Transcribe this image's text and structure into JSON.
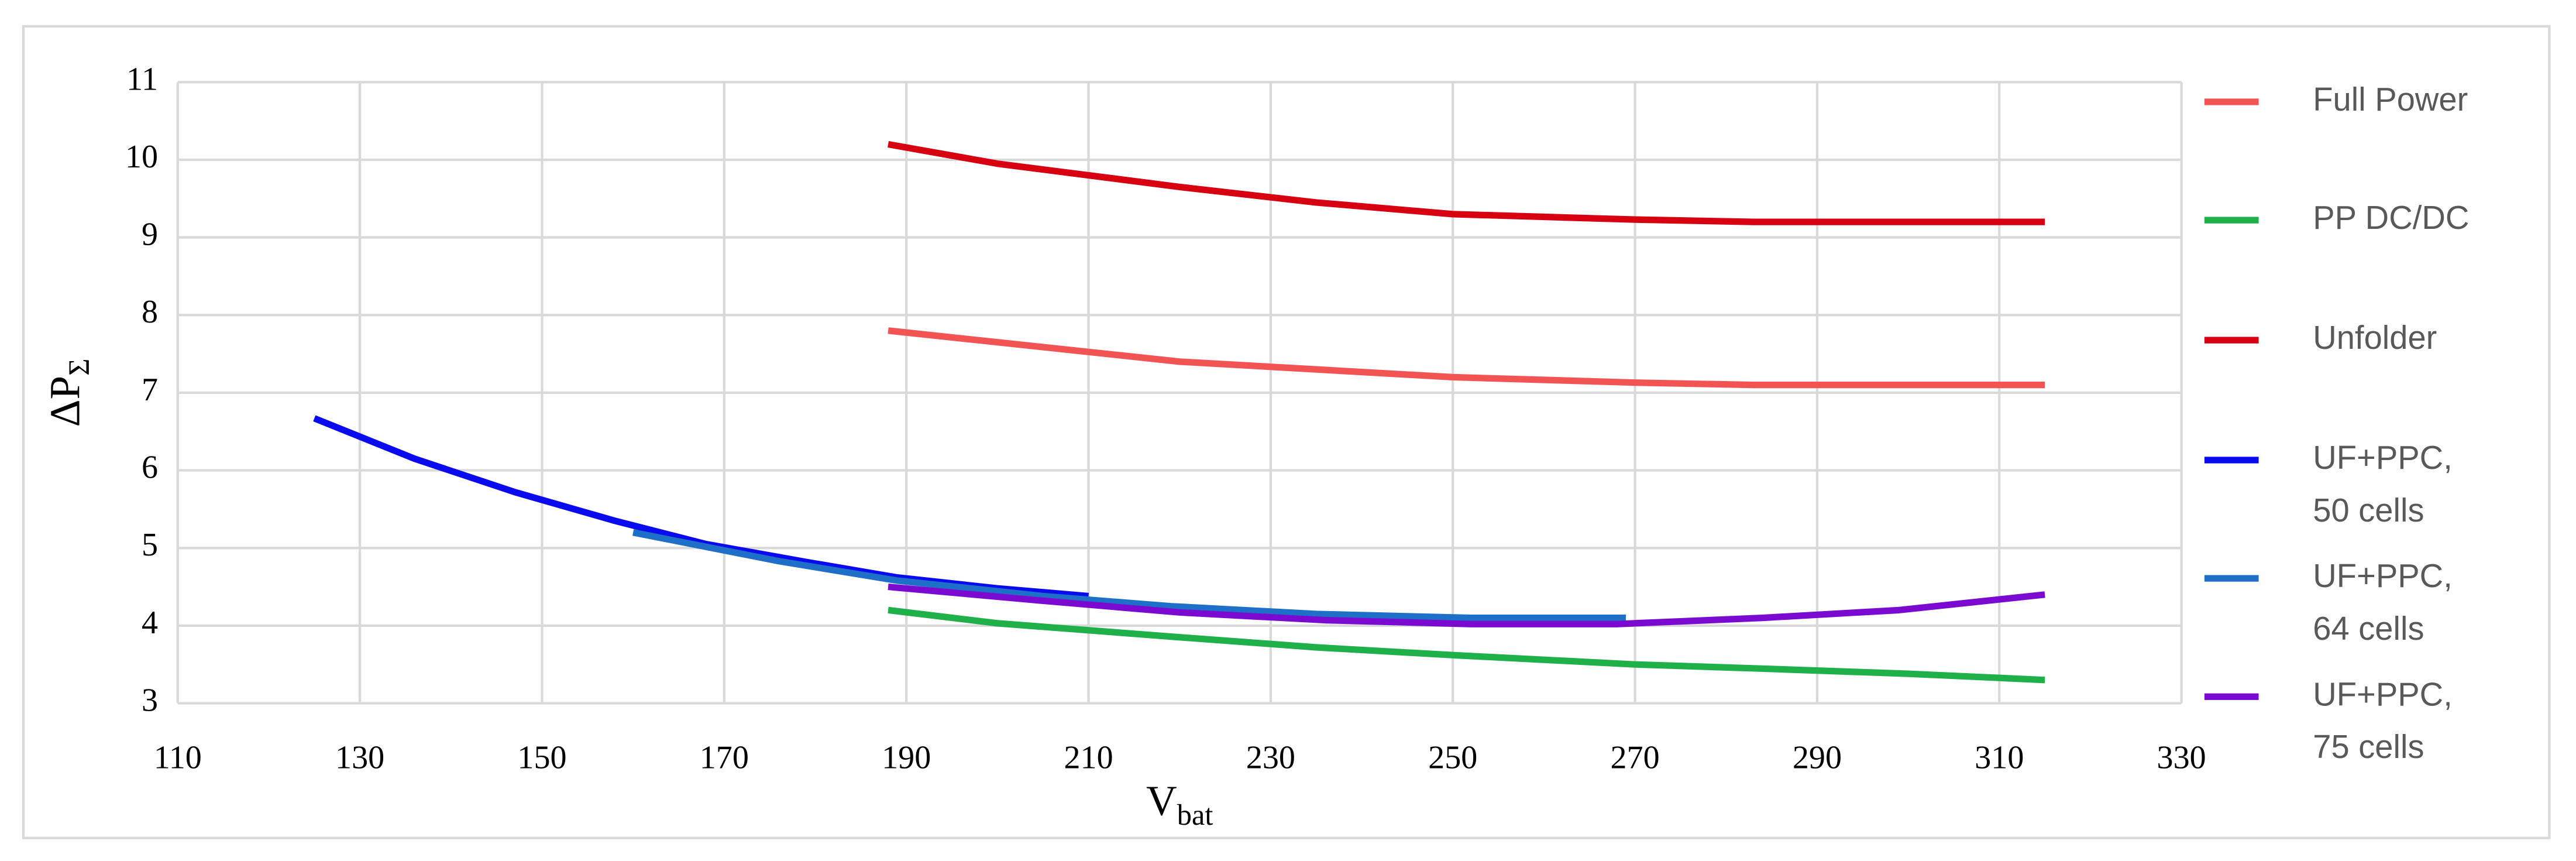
{
  "chart_data": {
    "type": "line",
    "ylabel": "ΔP",
    "ylabel_sub": "Σ",
    "xlabel": "V",
    "xlabel_sub": "bat",
    "xlim": [
      110,
      330
    ],
    "xticks": [
      110,
      130,
      150,
      170,
      190,
      210,
      230,
      250,
      270,
      290,
      310,
      330
    ],
    "ylim": [
      3,
      11
    ],
    "yticks": [
      3,
      4,
      5,
      6,
      7,
      8,
      9,
      10,
      11
    ],
    "grid": true,
    "legend": "right",
    "series": [
      {
        "name": "Full Power",
        "color": "#f25454",
        "x": [
          188,
          200,
          220,
          235,
          250,
          270,
          283,
          300,
          315
        ],
        "values": [
          7.8,
          7.65,
          7.4,
          7.3,
          7.2,
          7.13,
          7.1,
          7.1,
          7.1
        ]
      },
      {
        "name": "PP DC/DC",
        "color": "#1fb04a",
        "x": [
          188,
          200,
          220,
          235,
          250,
          270,
          283,
          300,
          315
        ],
        "values": [
          4.2,
          4.03,
          3.85,
          3.72,
          3.62,
          3.5,
          3.45,
          3.38,
          3.3
        ]
      },
      {
        "name": "Unfolder",
        "color": "#d60010",
        "x": [
          188,
          200,
          220,
          235,
          250,
          270,
          283,
          300,
          315
        ],
        "values": [
          10.2,
          9.95,
          9.65,
          9.45,
          9.3,
          9.23,
          9.2,
          9.2,
          9.2
        ]
      },
      {
        "name": "UF+PPC, 50 cells",
        "color": "#0a0aee",
        "x": [
          125,
          136,
          147,
          158,
          168,
          179,
          189,
          200,
          210
        ],
        "values": [
          6.67,
          6.15,
          5.72,
          5.35,
          5.05,
          4.82,
          4.62,
          4.48,
          4.38
        ]
      },
      {
        "name": "UF+PPC, 64 cells",
        "color": "#1e6fc8",
        "x": [
          160,
          176,
          189,
          205,
          219,
          235,
          252,
          269
        ],
        "values": [
          5.2,
          4.83,
          4.58,
          4.38,
          4.25,
          4.15,
          4.1,
          4.1
        ]
      },
      {
        "name": "UF+PPC, 75 cells",
        "color": "#7a0ad0",
        "x": [
          188,
          204,
          220,
          236,
          252,
          268,
          284,
          299,
          315
        ],
        "values": [
          4.5,
          4.33,
          4.17,
          4.07,
          4.02,
          4.02,
          4.1,
          4.2,
          4.4
        ]
      }
    ]
  }
}
